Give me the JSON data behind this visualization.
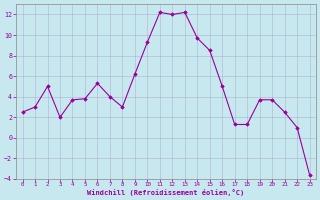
{
  "x": [
    0,
    1,
    2,
    3,
    4,
    5,
    6,
    7,
    8,
    9,
    10,
    11,
    12,
    13,
    14,
    15,
    16,
    17,
    18,
    19,
    20,
    21,
    22,
    23
  ],
  "y": [
    2.5,
    3.0,
    5.0,
    2.0,
    3.7,
    3.8,
    5.3,
    4.0,
    3.0,
    6.2,
    9.3,
    12.2,
    12.0,
    12.2,
    9.7,
    8.5,
    5.0,
    1.3,
    1.3,
    3.7,
    3.7,
    2.5,
    1.0,
    -3.6
  ],
  "xlabel": "Windchill (Refroidissement éolien,°C)",
  "ylim": [
    -4,
    13
  ],
  "xlim": [
    -0.5,
    23.5
  ],
  "yticks": [
    -4,
    -2,
    0,
    2,
    4,
    6,
    8,
    10,
    12
  ],
  "xticks": [
    0,
    1,
    2,
    3,
    4,
    5,
    6,
    7,
    8,
    9,
    10,
    11,
    12,
    13,
    14,
    15,
    16,
    17,
    18,
    19,
    20,
    21,
    22,
    23
  ],
  "line_color": "#990099",
  "marker_color": "#990099",
  "bg_color": "#c8e8f0",
  "grid_color": "#aaaacc",
  "label_color": "#990099",
  "tick_color": "#990099",
  "spine_color": "#888888"
}
